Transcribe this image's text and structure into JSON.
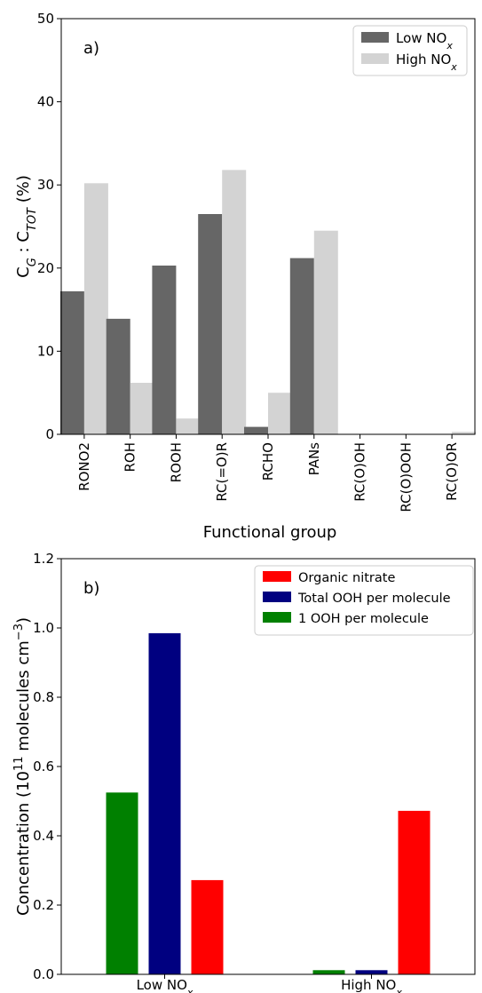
{
  "chart_data": [
    {
      "type": "bar",
      "panel_label": "a)",
      "xlabel": "Functional group",
      "ylabel": {
        "main": "C",
        "sub1": "G",
        "sep": " : C",
        "sub2": "TOT",
        "tail": " (%)"
      },
      "ylim": [
        0,
        50
      ],
      "yticks": [
        "0",
        "10",
        "20",
        "30",
        "40",
        "50"
      ],
      "categories": [
        "RONO2",
        "ROH",
        "ROOH",
        "RC(=O)R",
        "RCHO",
        "PANs",
        "RC(O)OH",
        "RC(O)OOH",
        "RC(O)OR"
      ],
      "series": [
        {
          "name": {
            "base": "Low NO",
            "sub": "x"
          },
          "color": "#666666",
          "values": [
            17.2,
            13.9,
            20.3,
            26.5,
            0.9,
            21.2,
            0,
            0,
            0
          ]
        },
        {
          "name": {
            "base": "High NO",
            "sub": "x"
          },
          "color": "#d3d3d3",
          "values": [
            30.2,
            6.2,
            1.9,
            31.8,
            5.0,
            24.5,
            0,
            0,
            0.3
          ]
        }
      ],
      "legend_position": "top-right",
      "grid": false
    },
    {
      "type": "bar",
      "panel_label": "b)",
      "ylabel": {
        "main": "Concentration (10",
        "sup1": "11",
        "mid": " molecules cm",
        "sup2": "−3",
        "tail": ")"
      },
      "ylim": [
        0,
        1.2
      ],
      "yticks": [
        "0.0",
        "0.2",
        "0.4",
        "0.6",
        "0.8",
        "1.0",
        "1.2"
      ],
      "categories": [
        {
          "base": "Low NO",
          "sub": "x"
        },
        {
          "base": "High NO",
          "sub": "x"
        }
      ],
      "series": [
        {
          "name": "1 OOH per molecule",
          "color": "#008000",
          "values": [
            0.525,
            0.012
          ]
        },
        {
          "name": "Total OOH per molecule",
          "color": "#000080",
          "values": [
            0.985,
            0.012
          ]
        },
        {
          "name": "Organic nitrate",
          "color": "#ff0000",
          "values": [
            0.272,
            0.472
          ]
        }
      ],
      "legend_order": [
        "Organic nitrate",
        "Total OOH per molecule",
        "1 OOH per molecule"
      ],
      "legend_position": "top-right",
      "grid": false
    }
  ]
}
